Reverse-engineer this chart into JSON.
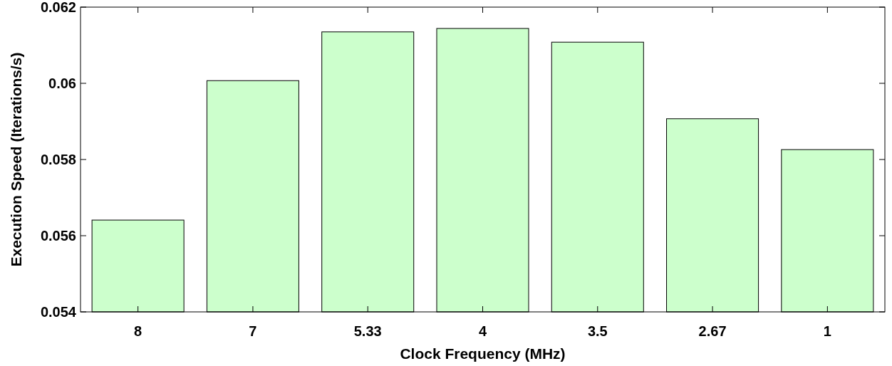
{
  "chart_data": {
    "type": "bar",
    "xlabel": "Clock Frequency (MHz)",
    "ylabel": "Execution Speed (Iterations/s)",
    "categories": [
      "8",
      "7",
      "5.33",
      "4",
      "3.5",
      "2.67",
      "1"
    ],
    "values": [
      0.05641,
      0.06007,
      0.06135,
      0.06144,
      0.06108,
      0.05907,
      0.05826
    ],
    "color": "#ccffcc",
    "ylim": [
      0.054,
      0.062
    ],
    "yticks": [
      0.054,
      0.056,
      0.058,
      0.06,
      0.062
    ],
    "grid": false
  }
}
